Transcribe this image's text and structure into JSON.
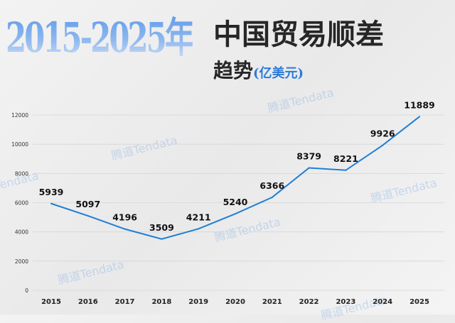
{
  "title": {
    "year_range": "2015-2025年",
    "main": "中国贸易顺差",
    "sub": "趋势",
    "unit": "(亿美元)"
  },
  "watermark": "腾道Tendata",
  "chart_data": {
    "type": "line",
    "title": "2015-2025年中国贸易顺差趋势(亿美元)",
    "categories": [
      "2015",
      "2016",
      "2017",
      "2018",
      "2019",
      "2020",
      "2021",
      "2022",
      "2023",
      "2024",
      "2025"
    ],
    "values": [
      5939,
      5097,
      4196,
      3509,
      4211,
      5240,
      6366,
      8379,
      8221,
      9926,
      11889
    ],
    "ylim": [
      0,
      12000
    ],
    "yticks": [
      0,
      2000,
      4000,
      6000,
      8000,
      10000,
      12000
    ],
    "grid": true,
    "line_color": "#1f7fd4",
    "data_labels": true
  }
}
